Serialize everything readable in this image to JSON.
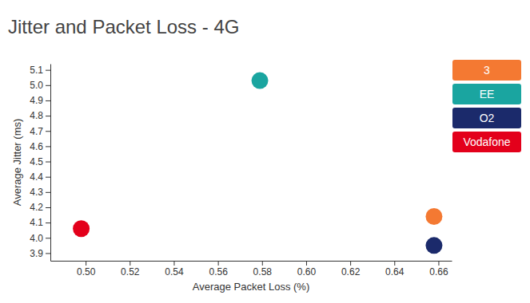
{
  "chart_data": {
    "type": "scatter",
    "title": "Jitter and Packet Loss - 4G",
    "x_label": "Average Packet Loss (%)",
    "y_label": "Average Jitter (ms)",
    "xlim": [
      0.484,
      0.666
    ],
    "xticks": [
      {
        "value": 0.5,
        "label": "0.50"
      },
      0.52,
      0.54,
      0.56,
      0.58,
      {
        "value": 0.6,
        "label": "0.60"
      },
      0.62,
      0.64,
      0.66
    ],
    "ylim": [
      3.85,
      5.14
    ],
    "yticks": [
      3.9,
      {
        "value": 4,
        "label": "4.0"
      },
      4.1,
      4.2,
      4.3,
      4.4,
      4.5,
      4.6,
      4.7,
      4.8,
      4.9,
      {
        "value": 5,
        "label": "5.0"
      },
      5.1
    ],
    "grid": false,
    "legend": "right",
    "series": [
      {
        "name": "3",
        "color": "#f47932",
        "marker": "circle",
        "x": [
          0.658
        ],
        "values": [
          4.14
        ]
      },
      {
        "name": "EE",
        "color": "#1aa5a0",
        "marker": "circle",
        "x": [
          0.579
        ],
        "values": [
          5.03
        ]
      },
      {
        "name": "O2",
        "color": "#1b2a6b",
        "marker": "circle",
        "x": [
          0.658
        ],
        "values": [
          3.95
        ]
      },
      {
        "name": "Vodafone",
        "color": "#e3001b",
        "marker": "circle",
        "x": [
          0.498
        ],
        "values": [
          4.06
        ]
      }
    ]
  }
}
